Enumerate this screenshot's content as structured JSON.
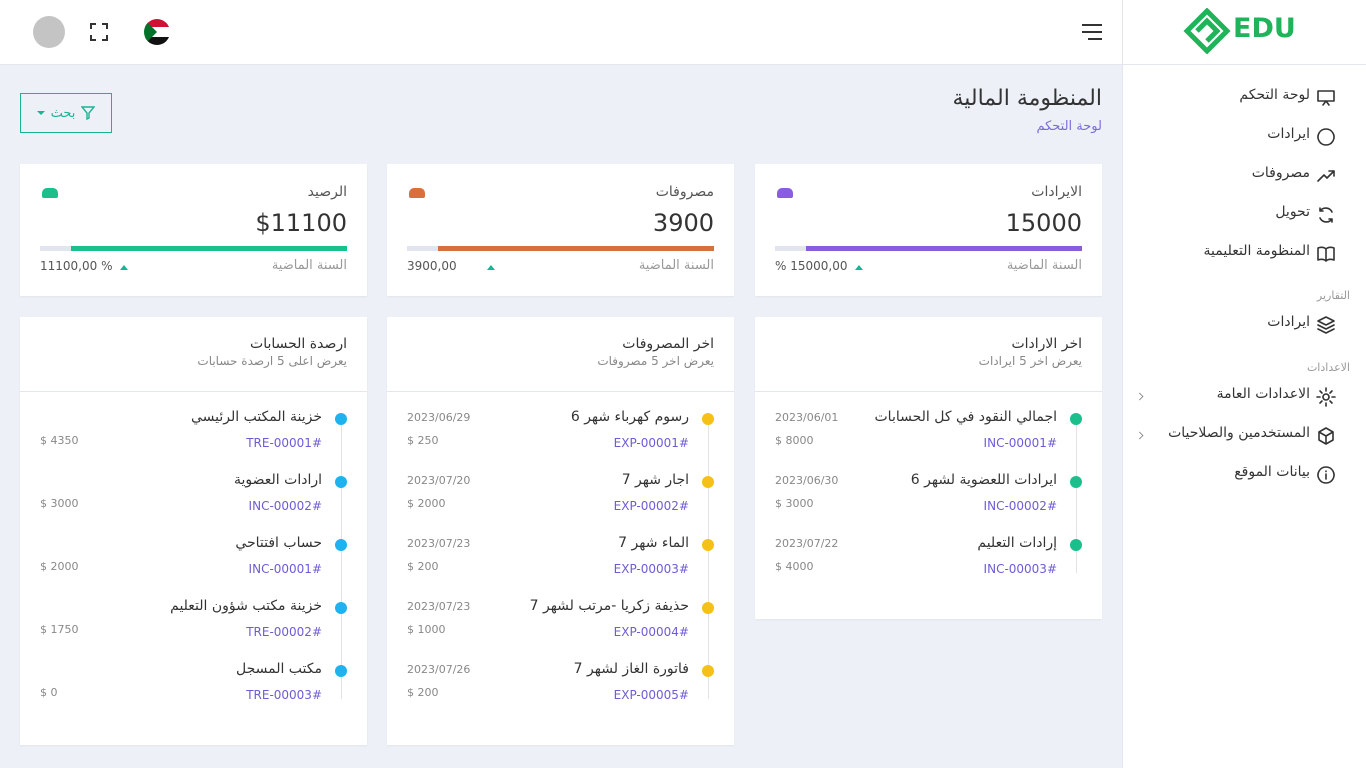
{
  "sidebar": {
    "logo": "EDU",
    "menu": [
      "لوحة التحكم",
      "ايرادات",
      "مصروفات",
      "تحويل",
      "المنظومة التعليمية"
    ],
    "reports_heading": "التقارير",
    "reports": [
      "ايرادات"
    ],
    "settings_heading": "الاعدادات",
    "settings": [
      "الاعدادات العامة",
      "المستخدمين والصلاحيات",
      "بيانات الموقع"
    ]
  },
  "header": {
    "title": "المنظومة المالية",
    "breadcrumb": "لوحة التحكم",
    "search": "بحث"
  },
  "stats": [
    {
      "label": "الايرادات",
      "value": "15000",
      "compare_label": "السنة الماضية",
      "compare": "% 15000,00"
    },
    {
      "label": "مصروفات",
      "value": "3900",
      "compare_label": "السنة الماضية",
      "compare": "3900,00"
    },
    {
      "label": "الرصيد",
      "value": "$11100",
      "compare_label": "السنة الماضية",
      "compare": "11100,00 %"
    }
  ],
  "lists": [
    {
      "title": "اخر الارادات",
      "subtitle": "يعرض اخر 5 ايرادات",
      "items": [
        {
          "title": "اجمالي النقود في كل الحسابات",
          "code": "INC-00001#",
          "date": "2023/06/01",
          "amount": "$ 8000"
        },
        {
          "title": "ايرادات اللعضوية لشهر 6",
          "code": "INC-00002#",
          "date": "2023/06/30",
          "amount": "$ 3000"
        },
        {
          "title": "إرادات التعليم",
          "code": "INC-00003#",
          "date": "2023/07/22",
          "amount": "$ 4000"
        }
      ]
    },
    {
      "title": "اخر المصروفات",
      "subtitle": "يعرض اخر 5 مصروفات",
      "items": [
        {
          "title": "رسوم كهرباء شهر 6",
          "code": "EXP-00001#",
          "date": "2023/06/29",
          "amount": "$ 250"
        },
        {
          "title": "اجار شهر 7",
          "code": "EXP-00002#",
          "date": "2023/07/20",
          "amount": "$ 2000"
        },
        {
          "title": "الماء شهر 7",
          "code": "EXP-00003#",
          "date": "2023/07/23",
          "amount": "$ 200"
        },
        {
          "title": "حذيفة زكريا -مرتب لشهر 7",
          "code": "EXP-00004#",
          "date": "2023/07/23",
          "amount": "$ 1000"
        },
        {
          "title": "فاتورة الغاز لشهر 7",
          "code": "EXP-00005#",
          "date": "2023/07/26",
          "amount": "$ 200"
        }
      ]
    },
    {
      "title": "ارصدة الحسابات",
      "subtitle": "يعرض اعلى 5 ارصدة حسابات",
      "items": [
        {
          "title": "خزينة المكتب الرئيسي",
          "code": "TRE-00001#",
          "amount": "$ 4350"
        },
        {
          "title": "ارادات العضوية",
          "code": "INC-00002#",
          "amount": "$ 3000"
        },
        {
          "title": "حساب افتتاحي",
          "code": "INC-00001#",
          "amount": "$ 2000"
        },
        {
          "title": "خزينة مكتب شؤون التعليم",
          "code": "TRE-00002#",
          "amount": "$ 1750"
        },
        {
          "title": "مكتب المسجل",
          "code": "TRE-00003#",
          "amount": "$ 0"
        }
      ]
    }
  ]
}
